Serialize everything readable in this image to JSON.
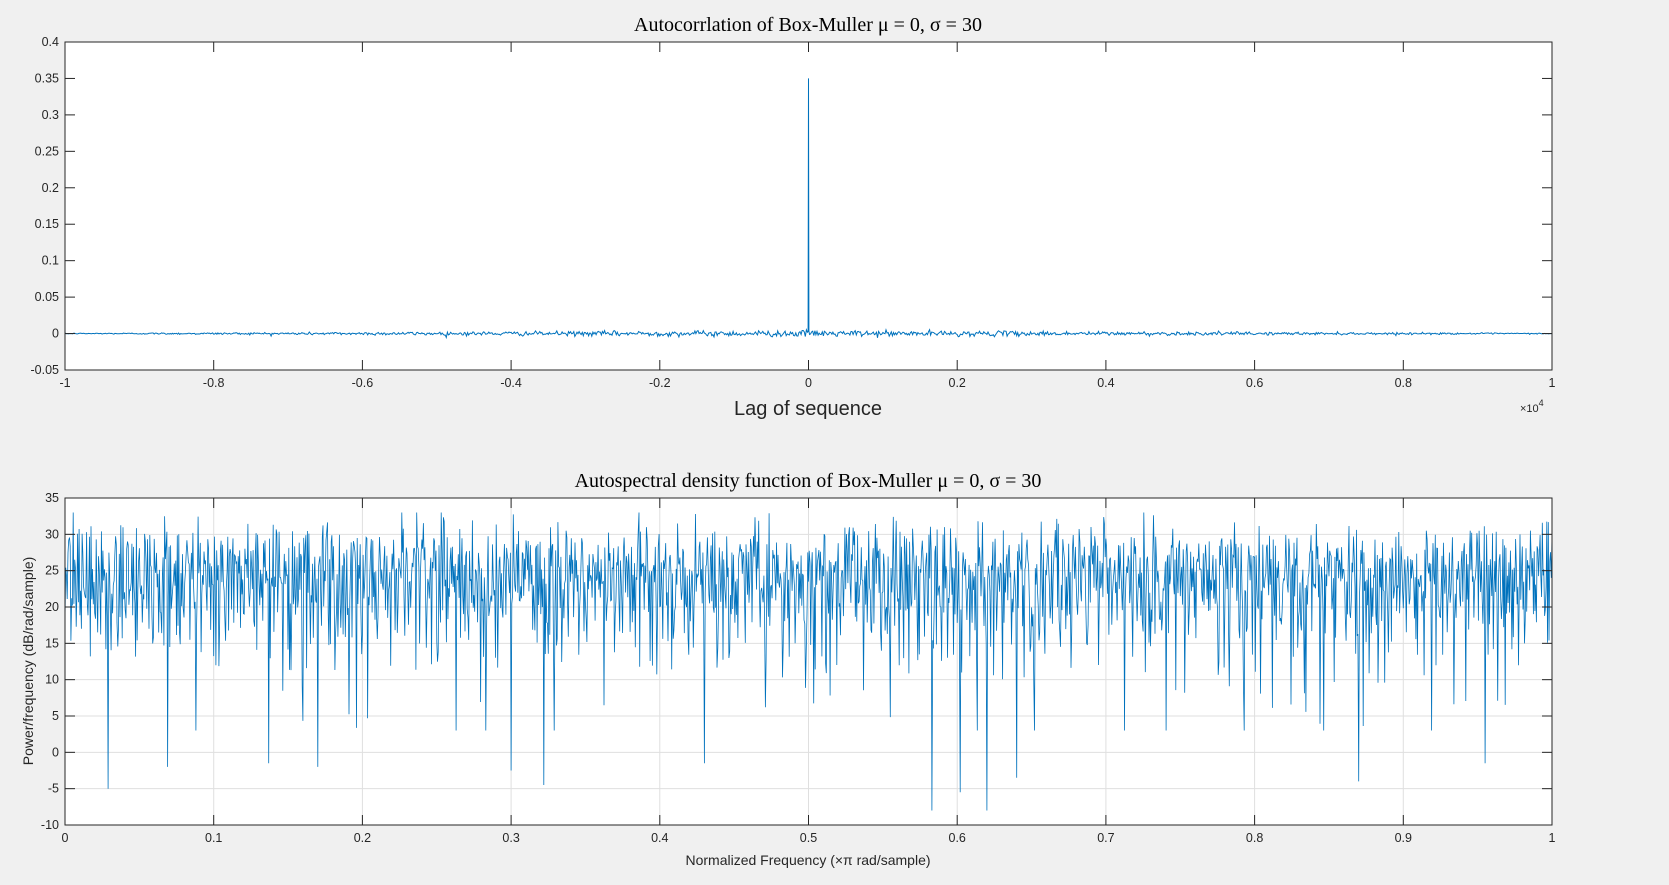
{
  "figure": {
    "background": "#f0f0f0",
    "axes_color": "#262626",
    "line_color": "#0072bd",
    "grid_color": "#dfdfdf"
  },
  "chart_data": [
    {
      "type": "line",
      "title": "Autocorrlation of Box-Muller μ = 0, σ = 30",
      "xlabel": "Lag of sequence",
      "ylabel": "",
      "x_multiplier": "×10",
      "x_multiplier_exponent": "4",
      "xlim": [
        -1,
        1
      ],
      "ylim": [
        -0.05,
        0.4
      ],
      "xticks": [
        -1,
        -0.8,
        -0.6,
        -0.4,
        -0.2,
        0,
        0.2,
        0.4,
        0.6,
        0.8,
        1
      ],
      "yticks": [
        -0.05,
        0,
        0.05,
        0.1,
        0.15,
        0.2,
        0.25,
        0.3,
        0.35,
        0.4
      ],
      "xtick_labels": [
        "-1",
        "-0.8",
        "-0.6",
        "-0.4",
        "-0.2",
        "0",
        "0.2",
        "0.4",
        "0.6",
        "0.8",
        "1"
      ],
      "ytick_labels": [
        "-0.05",
        "0",
        "0.05",
        "0.1",
        "0.15",
        "0.2",
        "0.25",
        "0.3",
        "0.35",
        "0.4"
      ],
      "grid": false,
      "peak": {
        "x": 0,
        "y": 0.35
      },
      "noise_baseline": 0.0,
      "noise_amplitude": 0.004,
      "num_samples": 1400
    },
    {
      "type": "line",
      "title": "Autospectral density function of Box-Muller μ = 0, σ = 30",
      "xlabel": "Normalized Frequency  (×π rad/sample)",
      "ylabel": "Power/frequency (dB/rad/sample)",
      "xlim": [
        0,
        1
      ],
      "ylim": [
        -10,
        35
      ],
      "xticks": [
        0,
        0.1,
        0.2,
        0.3,
        0.4,
        0.5,
        0.6,
        0.7,
        0.8,
        0.9,
        1
      ],
      "yticks": [
        -10,
        -5,
        0,
        5,
        10,
        15,
        20,
        25,
        30,
        35
      ],
      "xtick_labels": [
        "0",
        "0.1",
        "0.2",
        "0.3",
        "0.4",
        "0.5",
        "0.6",
        "0.7",
        "0.8",
        "0.9",
        "1"
      ],
      "ytick_labels": [
        "-10",
        "-5",
        "0",
        "5",
        "10",
        "15",
        "20",
        "25",
        "30",
        "35"
      ],
      "grid": true,
      "mean_level": 23,
      "typical_max": 33,
      "notable_dips": [
        {
          "x": 0.029,
          "y": -5
        },
        {
          "x": 0.069,
          "y": -2
        },
        {
          "x": 0.137,
          "y": -1.5
        },
        {
          "x": 0.17,
          "y": -2
        },
        {
          "x": 0.3,
          "y": -2.5
        },
        {
          "x": 0.322,
          "y": -4.5
        },
        {
          "x": 0.43,
          "y": -1.5
        },
        {
          "x": 0.583,
          "y": -8
        },
        {
          "x": 0.602,
          "y": -5.5
        },
        {
          "x": 0.62,
          "y": -8
        },
        {
          "x": 0.64,
          "y": -3.5
        },
        {
          "x": 0.87,
          "y": -4
        },
        {
          "x": 0.955,
          "y": -1.5
        }
      ],
      "num_samples": 2000
    }
  ]
}
